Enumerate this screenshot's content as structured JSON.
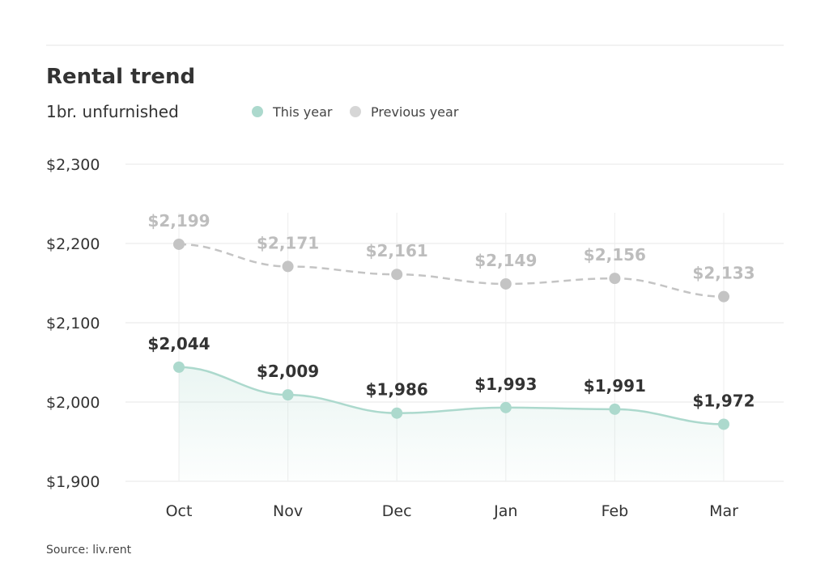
{
  "chart_data": {
    "type": "line",
    "title": "Rental trend",
    "subtitle": "1br. unfurnished",
    "categories": [
      "Oct",
      "Nov",
      "Dec",
      "Jan",
      "Feb",
      "Mar"
    ],
    "series": [
      {
        "name": "This year",
        "color": "#acd9cd",
        "values": [
          2044,
          2009,
          1986,
          1993,
          1991,
          1972
        ]
      },
      {
        "name": "Previous year",
        "color": "#c4c4c4",
        "values": [
          2199,
          2171,
          2161,
          2149,
          2156,
          2133
        ]
      }
    ],
    "yticks": [
      "$2,300",
      "$2,200",
      "$2,100",
      "$2,000",
      "$1,900"
    ],
    "ytick_values": [
      2300,
      2200,
      2100,
      2000,
      1900
    ],
    "ylim": [
      1900,
      2300
    ],
    "grid": true,
    "legend": "top",
    "source": "Source: liv.rent"
  }
}
